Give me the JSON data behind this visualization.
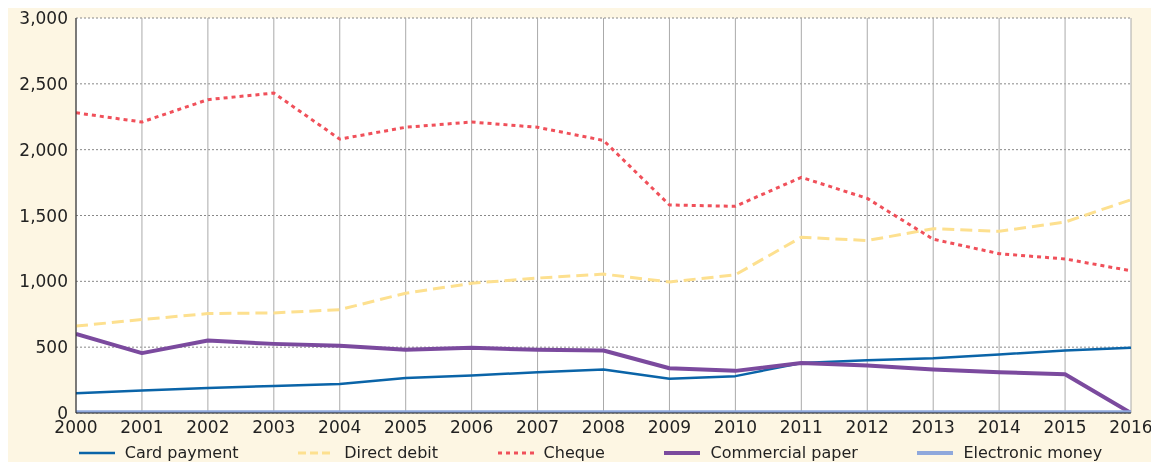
{
  "chart_data": {
    "type": "line",
    "x": [
      2000,
      2001,
      2002,
      2003,
      2004,
      2005,
      2006,
      2007,
      2008,
      2009,
      2010,
      2011,
      2012,
      2013,
      2014,
      2015,
      2016
    ],
    "xlim": [
      2000,
      2016
    ],
    "xticks": [
      2000,
      2001,
      2002,
      2003,
      2004,
      2005,
      2006,
      2007,
      2008,
      2009,
      2010,
      2011,
      2012,
      2013,
      2014,
      2015,
      2016
    ],
    "ylim": [
      0,
      3000
    ],
    "yticks": [
      0,
      {
        "value": 500,
        "label": "500"
      },
      {
        "value": 1000,
        "label": "1,000"
      },
      {
        "value": 1500,
        "label": "1,500"
      },
      {
        "value": 2000,
        "label": "2,000"
      },
      {
        "value": 2500,
        "label": "2,500"
      },
      {
        "value": 3000,
        "label": "3,000"
      }
    ],
    "grid": true,
    "legend": "bottom",
    "marker": "none",
    "series": [
      {
        "name": "Card payment",
        "color": "#0a64a8",
        "line_style": "solid",
        "values": [
          150,
          170,
          190,
          205,
          220,
          265,
          285,
          310,
          330,
          260,
          280,
          380,
          400,
          415,
          445,
          475,
          495
        ]
      },
      {
        "name": "Direct debit",
        "color": "#fde08f",
        "line_style": "dashed",
        "values": [
          660,
          710,
          755,
          760,
          785,
          910,
          985,
          1025,
          1055,
          995,
          1050,
          1335,
          1310,
          1400,
          1380,
          1450,
          1620
        ]
      },
      {
        "name": "Cheque",
        "color": "#f0505a",
        "line_style": "dotted",
        "values": [
          2280,
          2210,
          2380,
          2430,
          2080,
          2170,
          2210,
          2170,
          2070,
          1580,
          1570,
          1790,
          1630,
          1320,
          1210,
          1170,
          1080
        ]
      },
      {
        "name": "Commercial paper",
        "color": "#7b4a9e",
        "line_style": "solid",
        "values": [
          600,
          455,
          550,
          525,
          510,
          480,
          495,
          480,
          475,
          340,
          320,
          380,
          360,
          330,
          310,
          295,
          0
        ]
      },
      {
        "name": "Electronic money",
        "color": "#8fa8dc",
        "line_style": "solid",
        "values": [
          5,
          5,
          5,
          5,
          5,
          5,
          5,
          5,
          5,
          5,
          5,
          5,
          5,
          5,
          5,
          5,
          5
        ]
      }
    ]
  }
}
